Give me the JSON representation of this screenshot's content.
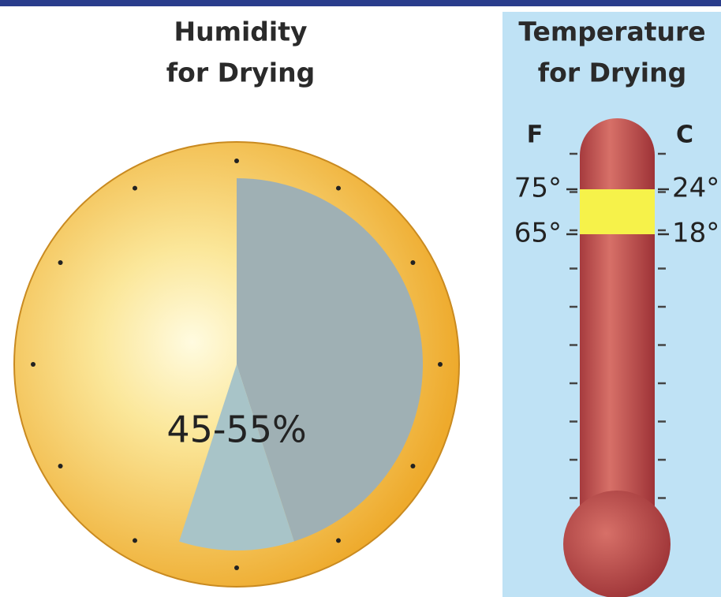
{
  "humidity": {
    "title": [
      "Humidity",
      "for Drying"
    ],
    "range_label": "45-55%",
    "low": 45,
    "high": 55
  },
  "temperature": {
    "title": [
      "Temperature",
      "for Drying"
    ],
    "fahrenheit_label": "F",
    "celsius_label": "C",
    "fahrenheit_ticks": [
      {
        "value": 75,
        "label": "75°"
      },
      {
        "value": 65,
        "label": "65°"
      }
    ],
    "celsius_ticks": [
      {
        "value": 24,
        "label": "24°"
      },
      {
        "value": 18,
        "label": "18°"
      }
    ]
  }
}
